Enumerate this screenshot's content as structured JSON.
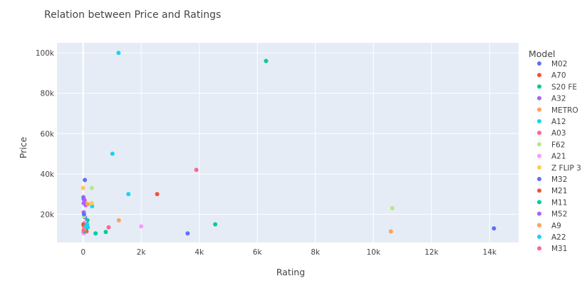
{
  "chart_data": {
    "type": "scatter",
    "title": "Relation between Price and Ratings",
    "xlabel": "Rating",
    "ylabel": "Price",
    "xlim": [
      -900,
      15000
    ],
    "ylim": [
      6000,
      105000
    ],
    "xticks": [
      0,
      2000,
      4000,
      6000,
      8000,
      10000,
      12000,
      14000
    ],
    "xtick_labels": [
      "0",
      "2k",
      "4k",
      "6k",
      "8k",
      "10k",
      "12k",
      "14k"
    ],
    "yticks": [
      20000,
      40000,
      60000,
      80000,
      100000
    ],
    "ytick_labels": [
      "20k",
      "40k",
      "60k",
      "80k",
      "100k"
    ],
    "grid": true,
    "background": "#E5ECF6",
    "legend": {
      "title": "Model",
      "placement": "right"
    },
    "series": [
      {
        "name": "M02",
        "color": "#636EFA",
        "points": [
          [
            40,
            12000
          ],
          [
            3600,
            10500
          ],
          [
            14150,
            13000
          ],
          [
            60,
            18500
          ]
        ]
      },
      {
        "name": "A70",
        "color": "#EF553B",
        "points": [
          [
            2550,
            30000
          ],
          [
            20,
            14500
          ],
          [
            40,
            13000
          ]
        ]
      },
      {
        "name": "S20 FE",
        "color": "#00CC96",
        "points": [
          [
            6300,
            96000
          ],
          [
            4550,
            15000
          ],
          [
            150,
            17000
          ],
          [
            780,
            11200
          ],
          [
            430,
            10500
          ]
        ]
      },
      {
        "name": "A32",
        "color": "#AB63FA",
        "points": [
          [
            90,
            24500
          ],
          [
            10,
            28500
          ],
          [
            20,
            21000
          ],
          [
            40,
            15500
          ]
        ]
      },
      {
        "name": "METRO",
        "color": "#FFA15A",
        "points": [
          [
            10600,
            11500
          ],
          [
            1230,
            17000
          ],
          [
            40,
            12500
          ]
        ]
      },
      {
        "name": "A12",
        "color": "#19D3F3",
        "points": [
          [
            1220,
            100000
          ],
          [
            1010,
            50000
          ],
          [
            1560,
            30000
          ],
          [
            310,
            24000
          ],
          [
            160,
            13500
          ]
        ]
      },
      {
        "name": "A03",
        "color": "#FF6692",
        "points": [
          [
            3900,
            42000
          ],
          [
            20,
            11000
          ],
          [
            120,
            11500
          ],
          [
            50,
            14000
          ]
        ]
      },
      {
        "name": "F62",
        "color": "#B6E880",
        "points": [
          [
            10650,
            23000
          ],
          [
            300,
            33000
          ],
          [
            30,
            19000
          ]
        ]
      },
      {
        "name": "A21",
        "color": "#FF97FF",
        "points": [
          [
            2000,
            14000
          ],
          [
            30,
            10500
          ],
          [
            60,
            16000
          ]
        ]
      },
      {
        "name": "Z FLIP 3",
        "color": "#FECB52",
        "points": [
          [
            0,
            33000
          ],
          [
            300,
            25500
          ],
          [
            80,
            26000
          ]
        ]
      },
      {
        "name": "M32",
        "color": "#636EFA",
        "points": [
          [
            60,
            37000
          ],
          [
            20,
            27500
          ],
          [
            30,
            20000
          ]
        ]
      },
      {
        "name": "M21",
        "color": "#EF553B",
        "points": [
          [
            10,
            15000
          ],
          [
            100,
            12000
          ]
        ]
      },
      {
        "name": "M11",
        "color": "#00CC96",
        "points": [
          [
            40,
            11500
          ],
          [
            80,
            13000
          ]
        ]
      },
      {
        "name": "M52",
        "color": "#AB63FA",
        "points": [
          [
            50,
            27000
          ],
          [
            20,
            25500
          ]
        ]
      },
      {
        "name": "A9",
        "color": "#FFA15A",
        "points": [
          [
            160,
            25000
          ],
          [
            40,
            12500
          ]
        ]
      },
      {
        "name": "A22",
        "color": "#19D3F3",
        "points": [
          [
            140,
            15000
          ],
          [
            100,
            14000
          ]
        ]
      },
      {
        "name": "M31",
        "color": "#FF6692",
        "points": [
          [
            880,
            13500
          ],
          [
            20,
            12000
          ]
        ]
      }
    ]
  }
}
